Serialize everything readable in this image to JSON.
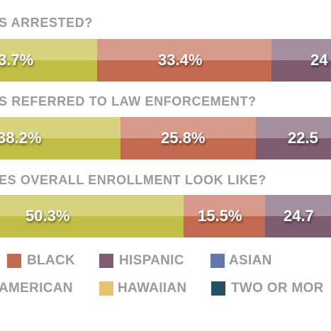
{
  "panels": [
    {
      "question": "S ARRESTED?",
      "segments": [
        "3.7%",
        "33.4%",
        "24"
      ]
    },
    {
      "question": "S REFERRED TO LAW ENFORCEMENT?",
      "segments": [
        "38.2%",
        "25.8%",
        "22.5"
      ]
    },
    {
      "question": "ES OVERALL ENROLLMENT LOOK LIKE?",
      "segments": [
        "50.3%",
        "15.5%",
        "24.7"
      ]
    }
  ],
  "legend": [
    "BLACK",
    "HISPANIC",
    "ASIAN",
    "AMERICAN",
    "HAWAIIAN",
    "TWO OR MOR"
  ]
}
